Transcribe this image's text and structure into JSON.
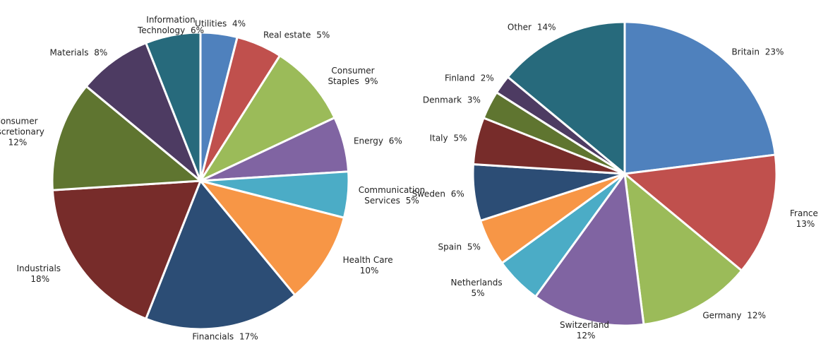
{
  "chart_data": [
    {
      "type": "pie",
      "categories": [
        "Utilities",
        "Real estate",
        "Consumer Staples",
        "Energy",
        "Communication Services",
        "Health Care",
        "Financials",
        "Industrials",
        "Consumer Discretionary",
        "Materials",
        "Information Technology"
      ],
      "values": [
        4,
        5,
        9,
        6,
        5,
        10,
        17,
        18,
        12,
        8,
        6
      ],
      "value_labels": [
        "4%",
        "5%",
        "9%",
        "6%",
        "5%",
        "10%",
        "17%",
        "18%",
        "12%",
        "8%",
        "6%"
      ],
      "colors": [
        "#4f81bd",
        "#c0504d",
        "#9bbb59",
        "#8064a2",
        "#4bacc6",
        "#f79646",
        "#2c4d75",
        "#772c2a",
        "#5f7530",
        "#4d3b62",
        "#276a7c"
      ]
    },
    {
      "type": "pie",
      "categories": [
        "Britain",
        "France",
        "Germany",
        "Switzerland",
        "Netherlands",
        "Spain",
        "Sweden",
        "Italy",
        "Denmark",
        "Finland",
        "Other"
      ],
      "values": [
        23,
        13,
        12,
        12,
        5,
        5,
        6,
        5,
        3,
        2,
        14
      ],
      "value_labels": [
        "23%",
        "13%",
        "12%",
        "12%",
        "5%",
        "5%",
        "6%",
        "5%",
        "3%",
        "2%",
        "14%"
      ],
      "colors": [
        "#4f81bd",
        "#c0504d",
        "#9bbb59",
        "#8064a2",
        "#4bacc6",
        "#f79646",
        "#2c4d75",
        "#772c2a",
        "#5f7530",
        "#4d3b62",
        "#276a7c"
      ]
    }
  ]
}
